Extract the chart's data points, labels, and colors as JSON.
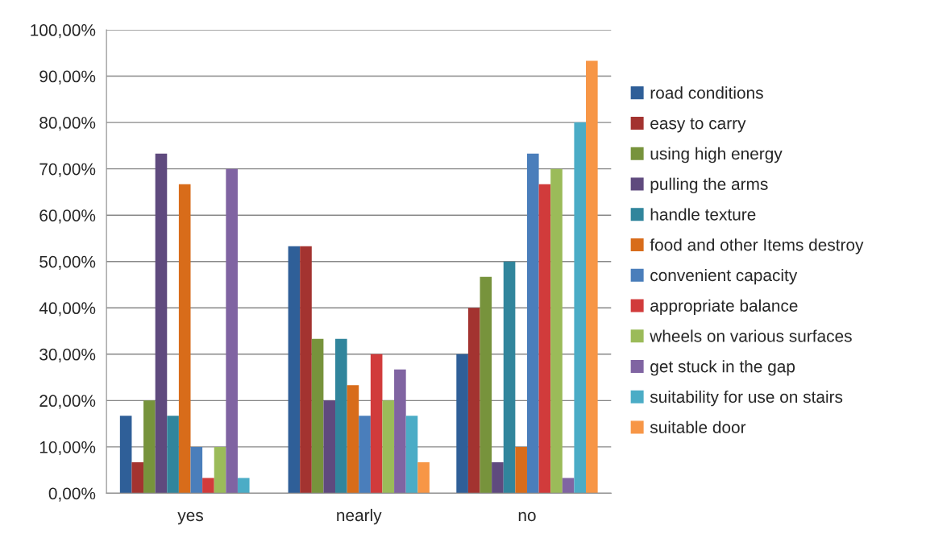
{
  "chart_data": {
    "type": "bar",
    "categories": [
      "yes",
      "nearly",
      "no"
    ],
    "series": [
      {
        "name": "road conditions",
        "color": "#2f5f98",
        "values": [
          16.7,
          53.3,
          30
        ]
      },
      {
        "name": "easy to carry",
        "color": "#a33330",
        "values": [
          6.7,
          53.3,
          40
        ]
      },
      {
        "name": "using high energy",
        "color": "#77933c",
        "values": [
          20,
          33.3,
          46.7
        ]
      },
      {
        "name": "pulling the arms",
        "color": "#5f4a7e",
        "values": [
          73.3,
          20,
          6.7
        ]
      },
      {
        "name": "handle texture",
        "color": "#31859c",
        "values": [
          16.7,
          33.3,
          50
        ]
      },
      {
        "name": "food and other Items destroy",
        "color": "#d86c1a",
        "values": [
          66.7,
          23.3,
          10
        ]
      },
      {
        "name": "convenient capacity",
        "color": "#4a7ebb",
        "values": [
          10,
          16.7,
          73.3
        ]
      },
      {
        "name": "appropriate balance",
        "color": "#d13b3b",
        "values": [
          3.3,
          30,
          66.7
        ]
      },
      {
        "name": "wheels on various surfaces",
        "color": "#9bbb59",
        "values": [
          10,
          20,
          70
        ]
      },
      {
        "name": "get stuck in the gap",
        "color": "#8064a2",
        "values": [
          70,
          26.7,
          3.3
        ]
      },
      {
        "name": "suitability for use on stairs",
        "color": "#4bacc6",
        "values": [
          3.3,
          16.7,
          80
        ]
      },
      {
        "name": "suitable door",
        "color": "#f79646",
        "values": [
          0,
          6.7,
          93.3
        ]
      }
    ],
    "ylim": [
      0,
      100
    ],
    "yticks": [
      {
        "value": 0,
        "label": "0,00%"
      },
      {
        "value": 10,
        "label": "10,00%"
      },
      {
        "value": 20,
        "label": "20,00%"
      },
      {
        "value": 30,
        "label": "30,00%"
      },
      {
        "value": 40,
        "label": "40,00%"
      },
      {
        "value": 50,
        "label": "50,00%"
      },
      {
        "value": 60,
        "label": "60,00%"
      },
      {
        "value": 70,
        "label": "70,00%"
      },
      {
        "value": 80,
        "label": "80,00%"
      },
      {
        "value": 90,
        "label": "90,00%"
      },
      {
        "value": 100,
        "label": "100,00%"
      }
    ],
    "grid": "y",
    "legend": "right"
  }
}
